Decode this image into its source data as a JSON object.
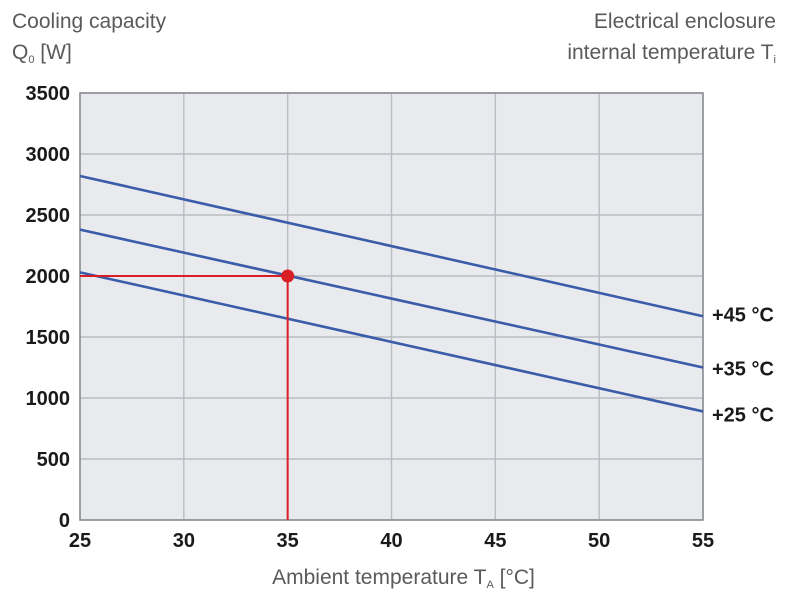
{
  "chart_data": {
    "type": "line",
    "title": "",
    "ylabel_line1": "Cooling capacity",
    "ylabel_symbol": "Q",
    "ylabel_sub": "0",
    "ylabel_unit": " [W]",
    "legend_title_line1": "Electrical enclosure",
    "legend_title_line2": "internal temperature T",
    "legend_title_sub": "i",
    "xlabel_main": "Ambient temperature T",
    "xlabel_sub": "A",
    "xlabel_unit": " [°C]",
    "xlim": [
      25,
      55
    ],
    "ylim": [
      0,
      3500
    ],
    "x_ticks": [
      "25",
      "30",
      "35",
      "40",
      "45",
      "50",
      "55"
    ],
    "y_ticks": [
      "0",
      "500",
      "1000",
      "1500",
      "2000",
      "2500",
      "3000",
      "3500"
    ],
    "grid": true,
    "series": [
      {
        "name": "+45 °C",
        "x": [
          25,
          55
        ],
        "values": [
          2820,
          1670
        ],
        "color": "#3b5ca8"
      },
      {
        "name": "+35 °C",
        "x": [
          25,
          55
        ],
        "values": [
          2380,
          1250
        ],
        "color": "#3b5ca8"
      },
      {
        "name": "+25 °C",
        "x": [
          25,
          55
        ],
        "values": [
          2030,
          890
        ],
        "color": "#3b5ca8"
      }
    ],
    "marker": {
      "x": 35,
      "y": 2000,
      "color": "#d81f26"
    }
  }
}
